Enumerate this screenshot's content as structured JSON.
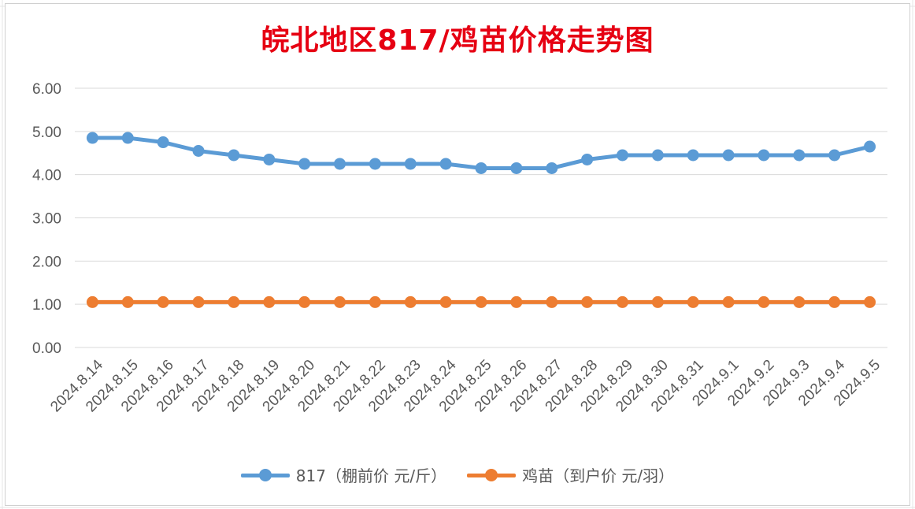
{
  "title": "皖北地区817/鸡苗价格走势图",
  "colors": {
    "title": "#e60012",
    "series_817": "#5b9bd5",
    "series_chick": "#ed7d31",
    "grid": "#d9d9d9",
    "text": "#595959"
  },
  "chart_data": {
    "type": "line",
    "title": "皖北地区817/鸡苗价格走势图",
    "categories": [
      "2024.8.14",
      "2024.8.15",
      "2024.8.16",
      "2024.8.17",
      "2024.8.18",
      "2024.8.19",
      "2024.8.20",
      "2024.8.21",
      "2024.8.22",
      "2024.8.23",
      "2024.8.24",
      "2024.8.25",
      "2024.8.26",
      "2024.8.27",
      "2024.8.28",
      "2024.8.29",
      "2024.8.30",
      "2024.8.31",
      "2024.9.1",
      "2024.9.2",
      "2024.9.3",
      "2024.9.4",
      "2024.9.5"
    ],
    "series": [
      {
        "name": "817（棚前价 元/斤）",
        "values": [
          4.85,
          4.85,
          4.75,
          4.55,
          4.45,
          4.35,
          4.25,
          4.25,
          4.25,
          4.25,
          4.25,
          4.15,
          4.15,
          4.15,
          4.35,
          4.45,
          4.45,
          4.45,
          4.45,
          4.45,
          4.45,
          4.45,
          4.65
        ]
      },
      {
        "name": "鸡苗（到户价 元/羽）",
        "values": [
          1.05,
          1.05,
          1.05,
          1.05,
          1.05,
          1.05,
          1.05,
          1.05,
          1.05,
          1.05,
          1.05,
          1.05,
          1.05,
          1.05,
          1.05,
          1.05,
          1.05,
          1.05,
          1.05,
          1.05,
          1.05,
          1.05,
          1.05
        ]
      }
    ],
    "yticks": [
      "0.00",
      "1.00",
      "2.00",
      "3.00",
      "4.00",
      "5.00",
      "6.00"
    ],
    "ylim": [
      0,
      6
    ],
    "grid": true,
    "legend_position": "bottom"
  }
}
